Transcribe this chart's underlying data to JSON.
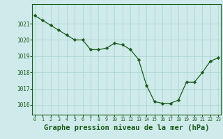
{
  "x": [
    0,
    1,
    2,
    3,
    4,
    5,
    6,
    7,
    8,
    9,
    10,
    11,
    12,
    13,
    14,
    15,
    16,
    17,
    18,
    19,
    20,
    21,
    22,
    23
  ],
  "y": [
    1021.5,
    1021.2,
    1020.9,
    1020.6,
    1020.3,
    1020.0,
    1020.0,
    1019.4,
    1019.4,
    1019.5,
    1019.8,
    1019.7,
    1019.4,
    1018.8,
    1017.2,
    1016.2,
    1016.1,
    1016.1,
    1016.3,
    1017.4,
    1017.4,
    1018.0,
    1018.7,
    1018.9
  ],
  "line_color": "#1a5c1a",
  "marker": "D",
  "marker_size": 2.2,
  "bg_color": "#ceeaea",
  "grid_color": "#b0d8d0",
  "xlabel": "Graphe pression niveau de la mer (hPa)",
  "xlabel_fontsize": 7.5,
  "ylabel_ticks": [
    1016,
    1017,
    1018,
    1019,
    1020,
    1021
  ],
  "xticks": [
    0,
    1,
    2,
    3,
    4,
    5,
    6,
    7,
    8,
    9,
    10,
    11,
    12,
    13,
    14,
    15,
    16,
    17,
    18,
    19,
    20,
    21,
    22,
    23
  ],
  "ylim": [
    1015.4,
    1022.2
  ],
  "xlim": [
    -0.3,
    23.3
  ]
}
